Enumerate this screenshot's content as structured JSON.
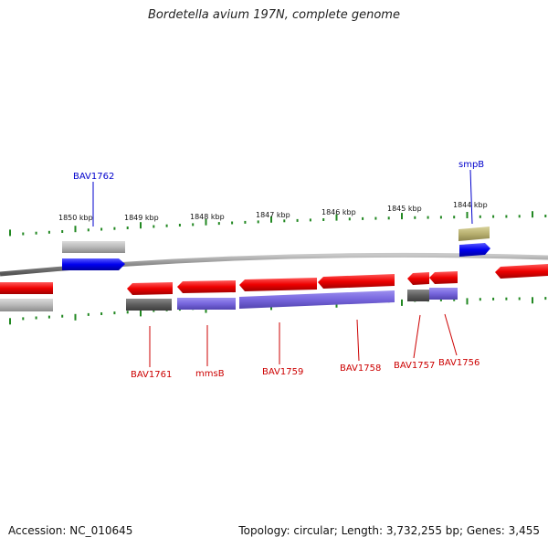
{
  "title": "Bordetella avium 197N, complete genome",
  "accession": "Accession: NC_010645",
  "summary": "Topology: circular; Length: 3,732,255 bp; Genes: 3,455",
  "ruler": {
    "tick_labels": [
      "1850 kbp",
      "1849 kbp",
      "1848 kbp",
      "1847 kbp",
      "1846 kbp",
      "1845 kbp",
      "1844 kbp"
    ]
  },
  "genes": {
    "forward": [
      {
        "label": "BAV1762",
        "color": "#0000ee",
        "label_color": "#0000cc"
      },
      {
        "label": "smpB",
        "color": "#0000ee",
        "label_color": "#0000cc"
      }
    ],
    "reverse": [
      {
        "label": "BAV1761",
        "color": "#ee0000",
        "label_color": "#cc0000"
      },
      {
        "label": "mmsB",
        "color": "#ee0000",
        "label_color": "#cc0000"
      },
      {
        "label": "BAV1759",
        "color": "#ee0000",
        "label_color": "#cc0000"
      },
      {
        "label": "BAV1758",
        "color": "#ee0000",
        "label_color": "#cc0000"
      },
      {
        "label": "BAV1757",
        "color": "#ee0000",
        "label_color": "#cc0000"
      },
      {
        "label": "BAV1756",
        "color": "#ee0000",
        "label_color": "#cc0000"
      }
    ]
  },
  "colors": {
    "backbone": "#8a8a8a",
    "tick": "#228822",
    "cog_gray": "#b8b8b8",
    "cog_dark": "#666666",
    "cog_purple": "#7766dd",
    "cog_olive": "#b8b070",
    "leader_forward": "#0000cc",
    "leader_reverse": "#cc0000"
  }
}
